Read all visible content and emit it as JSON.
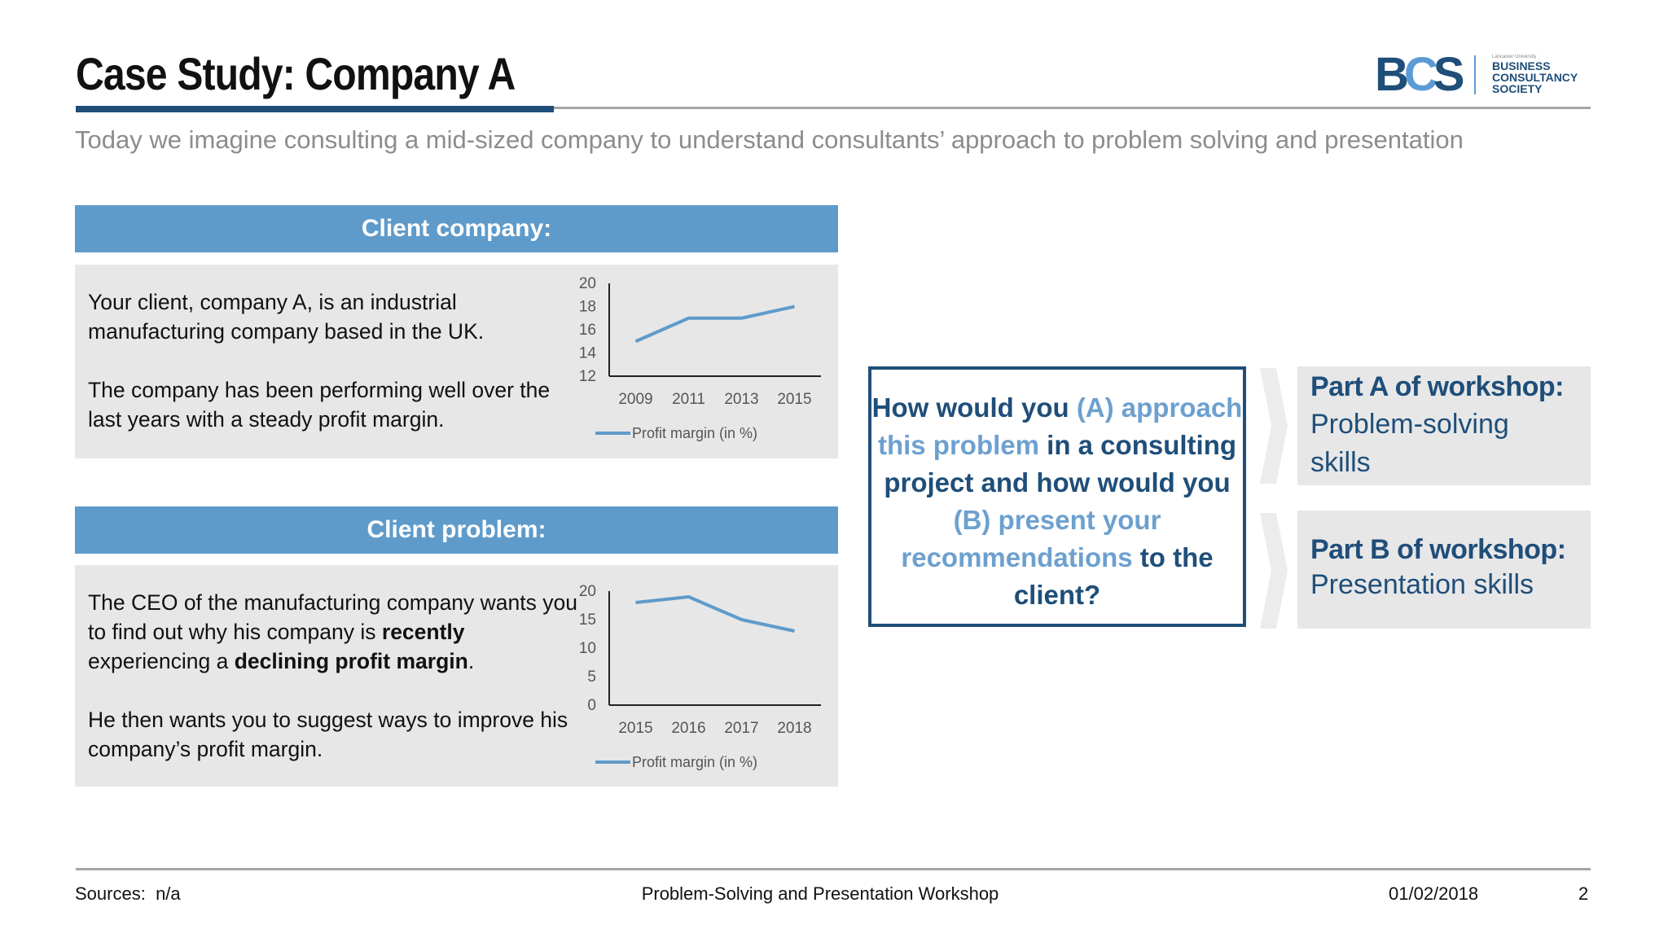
{
  "header": {
    "title": "Case Study: Company A",
    "subtitle": "Today we imagine consulting a mid-sized company to understand consultants’ approach to problem solving and presentation"
  },
  "logo": {
    "mark_b": "B",
    "mark_c": "C",
    "mark_s": "S",
    "small": "Lancaster University",
    "line1": "BUSINESS",
    "line2": "CONSULTANCY",
    "line3": "SOCIETY"
  },
  "client_company": {
    "heading": "Client company:",
    "para1": "Your client, company A, is an industrial manufacturing company based in the UK.",
    "para2": "The company has been performing well over the last years with a steady profit margin."
  },
  "client_problem": {
    "heading": "Client problem:",
    "para1_a": "The CEO of the manufacturing company wants you to find out why his company is ",
    "para1_b": "recently",
    "para1_c": " experiencing a ",
    "para1_d": "declining profit margin",
    "para1_e": ".",
    "para2": "He then wants you to suggest ways to improve his company’s profit margin."
  },
  "chart_data": [
    {
      "type": "line",
      "categories": [
        "2009",
        "2011",
        "2013",
        "2015"
      ],
      "series": [
        {
          "name": "Profit margin (in %)",
          "values": [
            15,
            17,
            17,
            18
          ]
        }
      ],
      "yticks": [
        "20",
        "18",
        "16",
        "14",
        "12"
      ],
      "ylim": [
        12,
        20
      ],
      "legend": "bottom",
      "color": "#5f9bca"
    },
    {
      "type": "line",
      "categories": [
        "2015",
        "2016",
        "2017",
        "2018"
      ],
      "series": [
        {
          "name": "Profit margin (in %)",
          "values": [
            18,
            19,
            15,
            13
          ]
        }
      ],
      "yticks": [
        "20",
        "15",
        "10",
        "5",
        "0"
      ],
      "ylim": [
        0,
        20
      ],
      "legend": "bottom",
      "color": "#5f9bca"
    }
  ],
  "question": {
    "p1": "How would you ",
    "p2": "(A) approach this problem",
    "p3": " in a consulting project and how would you ",
    "p4": "(B) present your recommendations",
    "p5": " to the client?"
  },
  "parts": {
    "a_title": "Part A of workshop:",
    "a_sub": "Problem-solving skills",
    "b_title": "Part B of workshop:",
    "b_sub": "Presentation skills"
  },
  "footer": {
    "sources_label": "Sources:",
    "sources_value": "n/a",
    "center": "Problem-Solving and Presentation Workshop",
    "date": "01/02/2018",
    "page": "2"
  },
  "colors": {
    "dark_blue": "#1f4e79",
    "mid_blue": "#5f9bca",
    "light_gray": "#e7e7e8"
  }
}
